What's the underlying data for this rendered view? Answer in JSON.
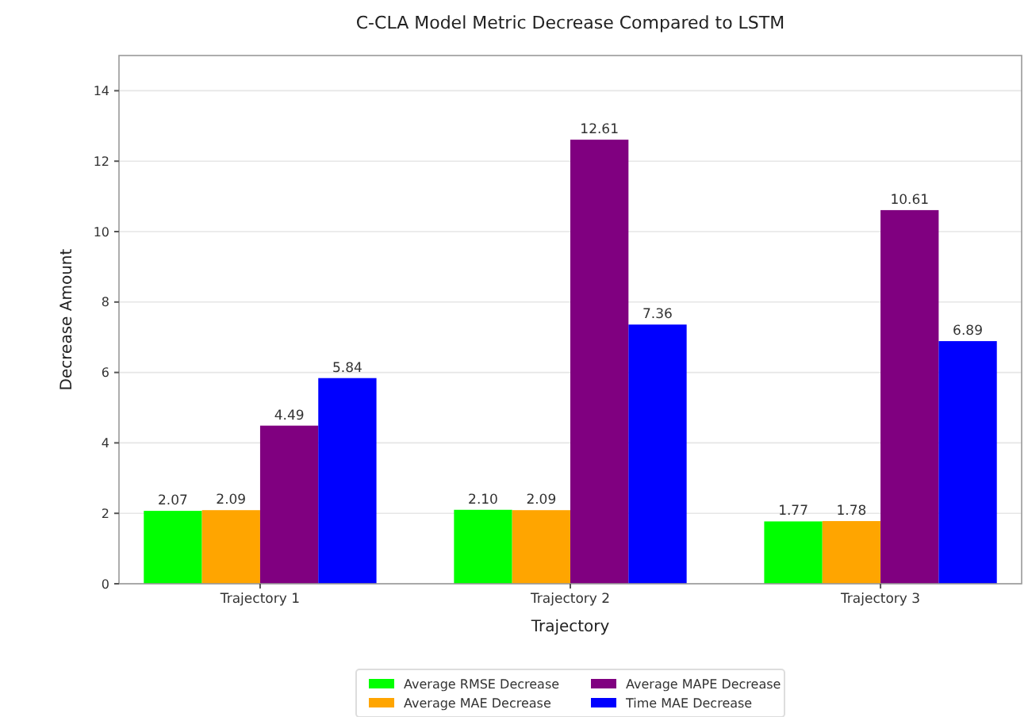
{
  "chart_data": {
    "type": "bar",
    "title": "C-CLA Model Metric Decrease Compared to LSTM",
    "xlabel": "Trajectory",
    "ylabel": "Decrease Amount",
    "categories": [
      "Trajectory 1",
      "Trajectory 2",
      "Trajectory 3"
    ],
    "series": [
      {
        "name": "Average RMSE Decrease",
        "color": "#00ff00",
        "values": [
          2.07,
          2.1,
          1.77
        ],
        "value_labels": [
          "2.07",
          "2.10",
          "1.77"
        ]
      },
      {
        "name": "Average MAE Decrease",
        "color": "#ffa500",
        "values": [
          2.09,
          2.09,
          1.78
        ],
        "value_labels": [
          "2.09",
          "2.09",
          "1.78"
        ]
      },
      {
        "name": "Average MAPE Decrease",
        "color": "#800080",
        "values": [
          4.49,
          12.61,
          10.61
        ],
        "value_labels": [
          "4.49",
          "12.61",
          "10.61"
        ]
      },
      {
        "name": "Time MAE Decrease",
        "color": "#0000ff",
        "values": [
          5.84,
          7.36,
          6.89
        ],
        "value_labels": [
          "5.84",
          "7.36",
          "6.89"
        ]
      }
    ],
    "ylim": [
      0,
      15
    ],
    "yticks": [
      0,
      2,
      4,
      6,
      8,
      10,
      12,
      14
    ],
    "grid": "y",
    "legend": "bottom"
  }
}
